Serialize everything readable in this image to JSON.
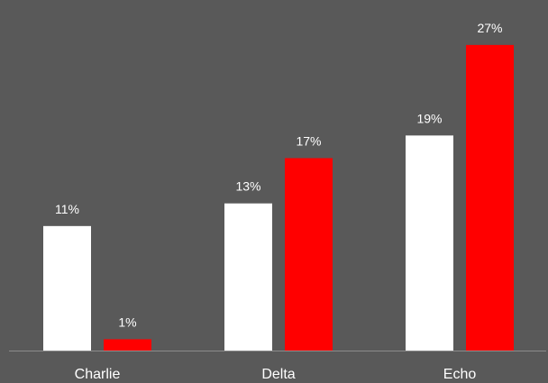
{
  "chart_data": {
    "type": "bar",
    "categories": [
      "Charlie",
      "Delta",
      "Echo"
    ],
    "series": [
      {
        "values": [
          11,
          13,
          19
        ],
        "color": "#ffffff"
      },
      {
        "values": [
          1,
          17,
          27
        ],
        "color": "#ff0000"
      }
    ],
    "value_suffix": "%",
    "ylim": [
      0,
      28
    ],
    "grid": false,
    "legend": "none",
    "background": "#595959",
    "axis_color": "#8c8c8c"
  }
}
